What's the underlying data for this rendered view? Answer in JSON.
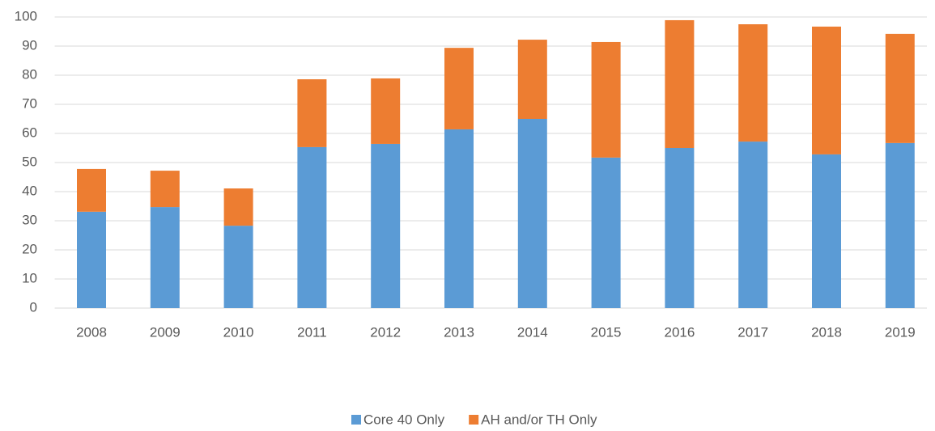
{
  "chart_data": {
    "type": "stacked_bar",
    "categories": [
      "2008",
      "2009",
      "2010",
      "2011",
      "2012",
      "2013",
      "2014",
      "2015",
      "2016",
      "2017",
      "2018",
      "2019"
    ],
    "series": [
      {
        "name": "Core 40 Only",
        "color": "#5b9bd5",
        "values": [
          33.1,
          34.7,
          28.3,
          55.3,
          56.4,
          61.4,
          65.0,
          51.7,
          55.0,
          57.2,
          52.8,
          56.7
        ]
      },
      {
        "name": "AH and/or TH Only",
        "color": "#ed7d31",
        "values": [
          14.7,
          12.5,
          12.8,
          23.3,
          22.5,
          28.0,
          27.2,
          39.7,
          43.9,
          40.3,
          43.9,
          37.5
        ]
      }
    ],
    "ylim": [
      0,
      100
    ],
    "yticks": [
      0,
      10,
      20,
      30,
      40,
      50,
      60,
      70,
      80,
      90,
      100
    ],
    "grid": true,
    "legend": "bottom"
  }
}
